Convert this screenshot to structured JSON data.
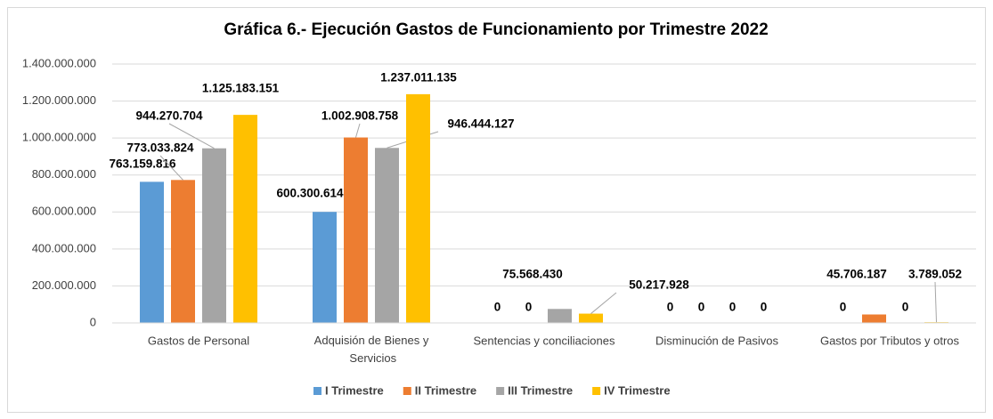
{
  "chart_data": {
    "type": "bar",
    "title": "Gráfica 6.- Ejecución Gastos de Funcionamiento por Trimestre 2022",
    "categories": [
      "Gastos de Personal",
      "Adquisión de Bienes y Servicios",
      "Sentencias y conciliaciones",
      "Disminución de Pasivos",
      "Gastos por Tributos y otros"
    ],
    "series": [
      {
        "name": "I Trimestre",
        "color": "#5b9bd5",
        "values": [
          763159816,
          600300614,
          0,
          0,
          0
        ],
        "value_labels": [
          "763.159.816",
          "600.300.614",
          "0",
          "0",
          "0"
        ]
      },
      {
        "name": "II Trimestre",
        "color": "#ed7d31",
        "values": [
          773033824,
          1002908758,
          0,
          0,
          45706187
        ],
        "value_labels": [
          "773.033.824",
          "1.002.908.758",
          "0",
          "0",
          "45.706.187"
        ]
      },
      {
        "name": "III Trimestre",
        "color": "#a5a5a5",
        "values": [
          944270704,
          946444127,
          75568430,
          0,
          0
        ],
        "value_labels": [
          "944.270.704",
          "946.444.127",
          "75.568.430",
          "0",
          "0"
        ]
      },
      {
        "name": "IV Trimestre",
        "color": "#ffc000",
        "values": [
          1125183151,
          1237011135,
          50217928,
          0,
          3789052
        ],
        "value_labels": [
          "1.125.183.151",
          "1.237.011.135",
          "50.217.928",
          "0",
          "3.789.052"
        ]
      }
    ],
    "ylim": [
      0,
      1400000000
    ],
    "yticks": [
      0,
      {
        "value": 200000000,
        "label": "200.000.000"
      },
      {
        "value": 400000000,
        "label": "400.000.000"
      },
      {
        "value": 600000000,
        "label": "600.000.000"
      },
      {
        "value": 800000000,
        "label": "800.000.000"
      },
      {
        "value": 1000000000,
        "label": "1.000.000.000"
      },
      {
        "value": 1200000000,
        "label": "1.200.000.000"
      },
      {
        "value": 1400000000,
        "label": "1.400.000.000"
      }
    ],
    "grid": true,
    "legend": "bottom"
  }
}
